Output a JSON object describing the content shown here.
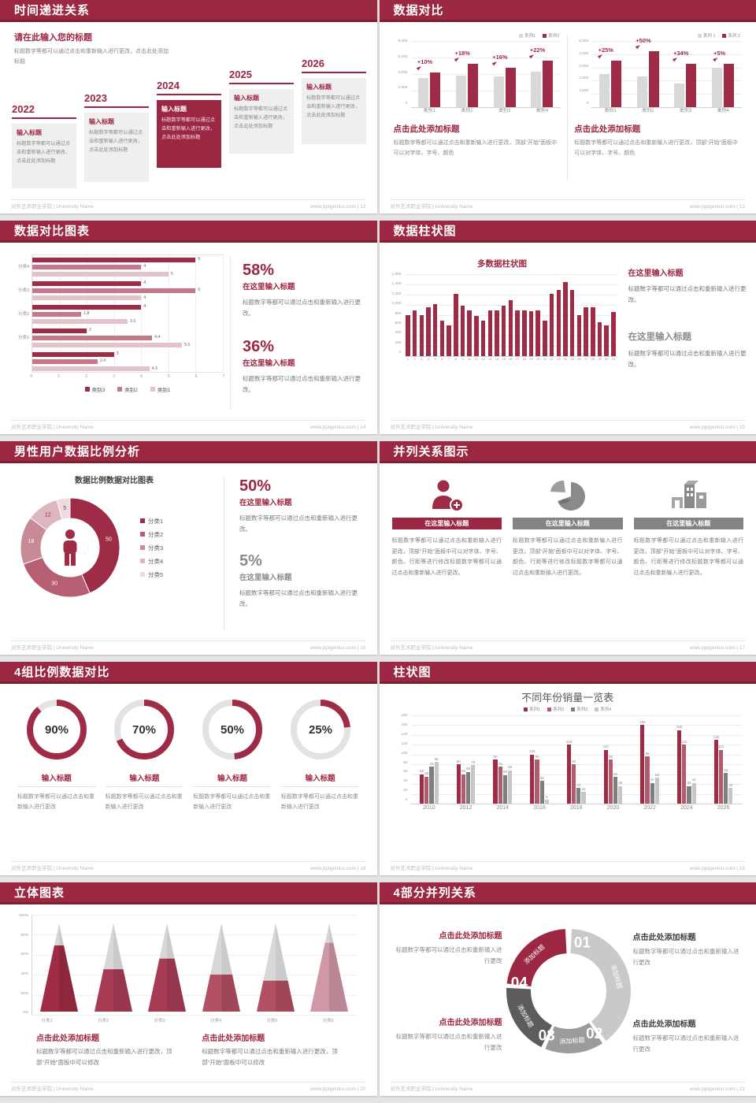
{
  "theme": {
    "accent": "#9c2742",
    "accent_dark": "#7c1f35",
    "page_bg": "#e4e4e4",
    "gray_bar": "#d9d9d9",
    "text_gray": "#7a7a7a",
    "footer_gray": "#bcbcbc"
  },
  "footer": {
    "left": "对外艺术职业学院 | University Name",
    "site": "www.pptgenius.com"
  },
  "slides": {
    "s12": {
      "title": "时间递进关系",
      "footer_right": "www.pptgenius.com | 12",
      "page": "12",
      "intro_title": "请在此输入您的标题",
      "intro_body": "标题数字等都可以通过点击和重新输入进行更改，点击此处添加标题",
      "years": [
        "2022",
        "2023",
        "2024",
        "2025",
        "2026"
      ],
      "highlight_index": 2,
      "box_title": "输入标题",
      "box_body": "标题数字等都可以通过点击和重新输入进行更改，点击此处添加标题"
    },
    "s13": {
      "title": "数据对比",
      "footer_right": "www.pptgenius.com | 13",
      "page": "13",
      "blocks": [
        {
          "heading": "点击此处添加标题",
          "body": "标题数字等都可以通过点击和重新输入进行更改，顶部“开始”面板中可以对字体、字号、颜色"
        },
        {
          "heading": "点击此处添加标题",
          "body": "标题数字等都可以通过点击和重新输入进行更改，顶部“开始”面板中可以对字体、字号、颜色"
        }
      ]
    },
    "s14": {
      "title": "数据对比图表",
      "footer_right": "www.pptgenius.com | 14",
      "page": "14",
      "stats": [
        {
          "pct": "58%",
          "label": "在这里输入标题",
          "body": "标题数字等都可以通过点击和重新输入进行更改。"
        },
        {
          "pct": "36%",
          "label": "在这里输入标题",
          "body": "标题数字等都可以通过点击和重新输入进行更改。"
        }
      ]
    },
    "s15": {
      "title": "数据柱状图",
      "footer_right": "www.pptgenius.com | 15",
      "page": "15",
      "blocks": [
        {
          "label": "在这里输入标题",
          "body": "标题数字等都可以通过点击和重新输入进行更改。",
          "style": "red"
        },
        {
          "label": "在这里输入标题",
          "body": "标题数字等都可以通过点击和重新输入进行更改。",
          "style": "gray"
        }
      ]
    },
    "s16": {
      "title": "男性用户数据比例分析",
      "footer_right": "www.pptgenius.com | 16",
      "page": "16",
      "chart_title": "数据比例数据对比图表",
      "stats": [
        {
          "pct": "50%",
          "label": "在这里输入标题",
          "body": "标题数字等都可以通过点击和重新输入进行更改。",
          "style": "red"
        },
        {
          "pct": "5%",
          "label": "在这里输入标题",
          "body": "标题数字等都可以通过点击和重新输入进行更改。",
          "style": "gray"
        }
      ]
    },
    "s17": {
      "title": "并列关系图示",
      "footer_right": "www.pptgenius.com | 17",
      "page": "17",
      "items": [
        {
          "icon": "person-plus-icon",
          "header": "在这里输入标题",
          "accent": true,
          "body": "标题数字等都可以通过点击和重新输入进行更改，顶部“开始”面板中可以对字体、字号、颜色、行距等进行修改标题数字等都可以通过点击和重新输入进行更改。"
        },
        {
          "icon": "pie-3d-icon",
          "header": "在这里输入标题",
          "accent": false,
          "body": "标题数字等都可以通过点击和重新输入进行更改，顶部“开始”面板中可以对字体、字号、颜色、行距等进行修改标题数字等都可以通过点击和重新输入进行更改。"
        },
        {
          "icon": "building-icon",
          "header": "在这里输入标题",
          "accent": false,
          "body": "标题数字等都可以通过点击和重新输入进行更改，顶部“开始”面板中可以对字体、字号、颜色、行距等进行修改标题数字等都可以通过点击和重新输入进行更改。"
        }
      ]
    },
    "s18": {
      "title": "4组比例数据对比",
      "footer_right": "www.pptgenius.com | 18",
      "page": "18",
      "items": [
        {
          "pct": "90%",
          "label": "输入标题",
          "body": "标题数字等都可以通过点击和重新输入进行更改"
        },
        {
          "pct": "70%",
          "label": "输入标题",
          "body": "标题数字等都可以通过点击和重新输入进行更改"
        },
        {
          "pct": "50%",
          "label": "输入标题",
          "body": "标题数字等都可以通过点击和重新输入进行更改"
        },
        {
          "pct": "25%",
          "label": "输入标题",
          "body": "标题数字等都可以通过点击和重新输入进行更改"
        }
      ]
    },
    "s19": {
      "title": "柱状图",
      "footer_right": "www.pptgenius.com | 19",
      "page": "19"
    },
    "s20": {
      "title": "立体图表",
      "footer_right": "www.pptgenius.com | 20",
      "page": "20",
      "blocks": [
        {
          "heading": "点击此处添加标题",
          "body": "标题数字等都可以通过点击和重新输入进行更改，顶部“开始”面板中可以修改"
        },
        {
          "heading": "点击此处添加标题",
          "body": "标题数字等都可以通过点击和重新输入进行更改，顶部“开始”面板中可以修改"
        }
      ]
    },
    "s21": {
      "title": "4部分并列关系",
      "footer_right": "www.pptgenius.com | 21",
      "page": "21",
      "blocks": [
        {
          "heading": "点击此处添加标题",
          "body": "标题数字等都可以通过点击和重新输入进行更改",
          "side": "left"
        },
        {
          "heading": "点击此处添加标题",
          "body": "标题数字等都可以通过点击和重新输入进行更改",
          "side": "right"
        },
        {
          "heading": "点击此处添加标题",
          "body": "标题数字等都可以通过点击和重新输入进行更改",
          "side": "left"
        },
        {
          "heading": "点击此处添加标题",
          "body": "标题数字等都可以通过点击和重新输入进行更改",
          "side": "right"
        }
      ]
    }
  },
  "chart_data": [
    {
      "id": "s13_left",
      "type": "bar",
      "categories": [
        "类别1",
        "类别2",
        "类别3",
        "类别4"
      ],
      "series": [
        {
          "name": "系列1",
          "color": "#d9d9d9",
          "values": [
            3500,
            3800,
            3700,
            4300
          ]
        },
        {
          "name": "系列2",
          "color": "#9e2c46",
          "values": [
            4200,
            5200,
            4800,
            5600
          ]
        }
      ],
      "annotations": [
        "+10%",
        "+18%",
        "+16%",
        "+22%"
      ],
      "ylim": [
        0,
        8000
      ],
      "yticks": [
        "8,000",
        "6,000",
        "4,000",
        "2,000",
        "0"
      ],
      "legend_position": "top-right",
      "grid": true
    },
    {
      "id": "s13_right",
      "type": "bar",
      "categories": [
        "类别1",
        "类别2",
        "类别3",
        "类别4"
      ],
      "series": [
        {
          "name": "系列 1",
          "color": "#d9d9d9",
          "values": [
            2500,
            2350,
            1800,
            3000
          ]
        },
        {
          "name": "系列 2",
          "color": "#9e2c46",
          "values": [
            3500,
            4200,
            3250,
            3250
          ]
        }
      ],
      "annotations": [
        "+25%",
        "+50%",
        "+34%",
        "+5%"
      ],
      "ylim": [
        0,
        5000
      ],
      "yticks": [
        "5,000",
        "4,000",
        "3,000",
        "2,000",
        "1,000",
        "0"
      ],
      "legend_position": "top-right",
      "grid": true
    },
    {
      "id": "s14",
      "type": "bar-horizontal",
      "group_labels": [
        "分类4",
        "分类3",
        "分类2",
        "分类1",
        ""
      ],
      "series": [
        {
          "name": "类别3",
          "color": "#9e2c46"
        },
        {
          "name": "类别2",
          "color": "#c4798a"
        },
        {
          "name": "类别1",
          "color": "#e3c3ca"
        }
      ],
      "values": [
        [
          6,
          4,
          5
        ],
        [
          4,
          6,
          4
        ],
        [
          4,
          1.8,
          3.5
        ],
        [
          2,
          4.4,
          5.5
        ],
        [
          3,
          2.4,
          4.3
        ]
      ],
      "xlim": [
        0,
        7
      ],
      "xticks": [
        "0",
        "1",
        "2",
        "3",
        "4",
        "5",
        "6",
        "7"
      ],
      "legend_position": "bottom-center",
      "grid": true
    },
    {
      "id": "s15",
      "type": "bar",
      "title": "多数据柱状图",
      "categories": [
        "1",
        "2",
        "3",
        "4",
        "5",
        "6",
        "7",
        "8",
        "9",
        "10",
        "11",
        "12",
        "13",
        "14",
        "15",
        "16",
        "17",
        "18",
        "19",
        "20",
        "21",
        "22",
        "23",
        "24",
        "25",
        "26",
        "27",
        "28",
        "29",
        "30",
        "31"
      ],
      "series": [
        {
          "name": "系列1",
          "color": "#9e2c46",
          "values": [
            800,
            900,
            800,
            950,
            1020,
            700,
            600,
            1210,
            980,
            890,
            780,
            700,
            890,
            890,
            990,
            1100,
            900,
            900,
            880,
            900,
            700,
            1210,
            1300,
            1450,
            1300,
            800,
            960,
            960,
            660,
            600,
            860
          ]
        }
      ],
      "ylim": [
        0,
        1600
      ],
      "yticks": [
        "1,600",
        "1,400",
        "1,200",
        "1,000",
        "800",
        "600",
        "400",
        "200",
        "0"
      ],
      "grid": true
    },
    {
      "id": "s16",
      "type": "pie",
      "donut": true,
      "title": "数据比例数据对比图表",
      "labels": [
        "分类1",
        "分类2",
        "分类3",
        "分类4",
        "分类5"
      ],
      "values": [
        50,
        30,
        18,
        12,
        5
      ],
      "colors": [
        "#9e2c46",
        "#b65e72",
        "#c98a98",
        "#ddb6bf",
        "#eddbe0"
      ],
      "legend_position": "right",
      "center_icon": "male-person-icon"
    },
    {
      "id": "s18",
      "type": "rings",
      "values": [
        90,
        70,
        50,
        25
      ],
      "color": "#9e2c46",
      "track": "#e3e3e3"
    },
    {
      "id": "s19",
      "type": "bar",
      "title": "不同年份销量一览表",
      "categories": [
        "2010",
        "2012",
        "2014",
        "2016",
        "2018",
        "2020",
        "2022",
        "2024",
        "2026"
      ],
      "series": [
        {
          "name": "系列1",
          "color": "#9e2c46",
          "values": [
            60,
            80,
            90,
            100,
            120,
            110,
            160,
            150,
            130
          ]
        },
        {
          "name": "系列2",
          "color": "#b5596d",
          "values": [
            55,
            60,
            75,
            90,
            80,
            90,
            96,
            120,
            110
          ]
        },
        {
          "name": "系列3",
          "color": "#7f7f7f",
          "values": [
            75,
            65,
            58,
            46,
            32,
            54,
            42,
            36,
            62
          ]
        },
        {
          "name": "系列4",
          "color": "#c6c6c6",
          "values": [
            85,
            78,
            68,
            8,
            24,
            36,
            53,
            42,
            32
          ]
        }
      ],
      "ylim": [
        0,
        180
      ],
      "yticks": [
        "180",
        "160",
        "140",
        "120",
        "100",
        "80",
        "60",
        "40",
        "20",
        "0"
      ],
      "show_value_labels": true,
      "legend_position": "top-center",
      "grid": true
    },
    {
      "id": "s20",
      "type": "cones",
      "categories": [
        "分类1",
        "分类2",
        "分类3",
        "分类4",
        "分类5",
        "分类6"
      ],
      "values_pct": [
        75,
        48,
        60,
        42,
        35,
        78
      ],
      "colors": [
        "#9e2c46",
        "#a83b54",
        "#a83b54",
        "#b25064",
        "#b25064",
        "#d098a6"
      ],
      "yticks": [
        "100%",
        "80%",
        "60%",
        "40%",
        "20%",
        "0%"
      ],
      "grid": true
    },
    {
      "id": "s21",
      "type": "ring-4-parts",
      "numbers": [
        "01",
        "02",
        "03",
        "04"
      ],
      "segment_label": "添加标题",
      "colors": [
        "#c9c9c9",
        "#9b9b9b",
        "#5c5c5c",
        "#9c2742"
      ]
    }
  ]
}
